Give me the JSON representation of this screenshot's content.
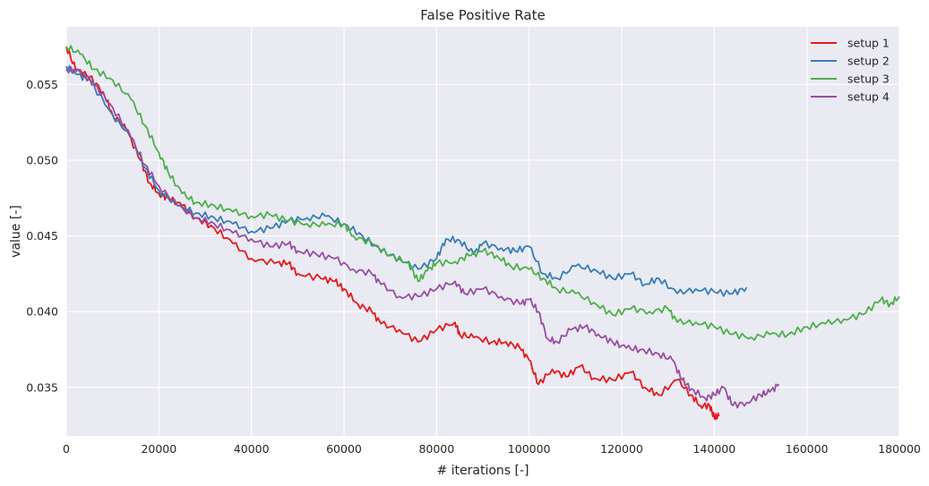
{
  "chart_data": {
    "type": "line",
    "title": "False Positive Rate",
    "xlabel": "# iterations [-]",
    "ylabel": "value [-]",
    "xlim": [
      0,
      180000
    ],
    "ylim": [
      0.0318,
      0.0588
    ],
    "x_ticks": [
      0,
      20000,
      40000,
      60000,
      80000,
      100000,
      120000,
      140000,
      160000,
      180000
    ],
    "y_ticks": [
      0.035,
      0.04,
      0.045,
      0.05,
      0.055
    ],
    "y_tick_labels": [
      "0.035",
      "0.040",
      "0.045",
      "0.050",
      "0.055"
    ],
    "grid": true,
    "legend_position": "top-right",
    "series": [
      {
        "name": "setup 1",
        "color": "#e41a1c",
        "points": [
          [
            0,
            0.0575
          ],
          [
            2000,
            0.056
          ],
          [
            5000,
            0.0555
          ],
          [
            8000,
            0.0545
          ],
          [
            10000,
            0.053
          ],
          [
            13000,
            0.052
          ],
          [
            16000,
            0.05
          ],
          [
            18000,
            0.0485
          ],
          [
            20000,
            0.0478
          ],
          [
            22000,
            0.0475
          ],
          [
            25000,
            0.047
          ],
          [
            28000,
            0.0462
          ],
          [
            32000,
            0.0455
          ],
          [
            36000,
            0.0445
          ],
          [
            40000,
            0.0435
          ],
          [
            45000,
            0.0432
          ],
          [
            48000,
            0.0432
          ],
          [
            50000,
            0.0425
          ],
          [
            55000,
            0.0422
          ],
          [
            58000,
            0.042
          ],
          [
            60000,
            0.0415
          ],
          [
            63000,
            0.0405
          ],
          [
            66000,
            0.04
          ],
          [
            68000,
            0.0392
          ],
          [
            72000,
            0.0388
          ],
          [
            76000,
            0.038
          ],
          [
            80000,
            0.0388
          ],
          [
            84000,
            0.0393
          ],
          [
            85000,
            0.0385
          ],
          [
            88000,
            0.0383
          ],
          [
            92000,
            0.038
          ],
          [
            95000,
            0.038
          ],
          [
            98000,
            0.0376
          ],
          [
            100000,
            0.0368
          ],
          [
            102000,
            0.0352
          ],
          [
            105000,
            0.0362
          ],
          [
            108000,
            0.0357
          ],
          [
            111000,
            0.0364
          ],
          [
            114000,
            0.0356
          ],
          [
            118000,
            0.0355
          ],
          [
            122000,
            0.036
          ],
          [
            125000,
            0.035
          ],
          [
            128000,
            0.0345
          ],
          [
            132000,
            0.0355
          ],
          [
            135000,
            0.0345
          ],
          [
            137000,
            0.0338
          ],
          [
            139000,
            0.0338
          ],
          [
            140000,
            0.033
          ],
          [
            141000,
            0.0331
          ]
        ]
      },
      {
        "name": "setup 2",
        "color": "#377eb8",
        "points": [
          [
            0,
            0.0562
          ],
          [
            2000,
            0.0557
          ],
          [
            5000,
            0.0553
          ],
          [
            10000,
            0.053
          ],
          [
            14000,
            0.0515
          ],
          [
            17000,
            0.0495
          ],
          [
            20000,
            0.048
          ],
          [
            24000,
            0.047
          ],
          [
            28000,
            0.0465
          ],
          [
            32000,
            0.0462
          ],
          [
            36000,
            0.0458
          ],
          [
            40000,
            0.0453
          ],
          [
            44000,
            0.0455
          ],
          [
            48000,
            0.046
          ],
          [
            52000,
            0.0462
          ],
          [
            56000,
            0.0463
          ],
          [
            60000,
            0.0458
          ],
          [
            64000,
            0.045
          ],
          [
            68000,
            0.044
          ],
          [
            72000,
            0.0435
          ],
          [
            76000,
            0.0428
          ],
          [
            80000,
            0.0435
          ],
          [
            82000,
            0.0448
          ],
          [
            85000,
            0.0447
          ],
          [
            88000,
            0.0438
          ],
          [
            90000,
            0.0445
          ],
          [
            94000,
            0.0442
          ],
          [
            97000,
            0.044
          ],
          [
            100000,
            0.0443
          ],
          [
            103000,
            0.0425
          ],
          [
            106000,
            0.0422
          ],
          [
            110000,
            0.043
          ],
          [
            114000,
            0.0428
          ],
          [
            118000,
            0.0422
          ],
          [
            122000,
            0.0425
          ],
          [
            125000,
            0.0418
          ],
          [
            128000,
            0.0422
          ],
          [
            132000,
            0.0412
          ],
          [
            136000,
            0.0415
          ],
          [
            140000,
            0.0413
          ],
          [
            144000,
            0.0412
          ],
          [
            147000,
            0.0416
          ]
        ]
      },
      {
        "name": "setup 3",
        "color": "#4daf4a",
        "points": [
          [
            0,
            0.0575
          ],
          [
            3000,
            0.057
          ],
          [
            6000,
            0.056
          ],
          [
            10000,
            0.0553
          ],
          [
            14000,
            0.054
          ],
          [
            17000,
            0.0523
          ],
          [
            20000,
            0.0505
          ],
          [
            22000,
            0.0492
          ],
          [
            25000,
            0.0478
          ],
          [
            28000,
            0.0472
          ],
          [
            32000,
            0.047
          ],
          [
            36000,
            0.0466
          ],
          [
            40000,
            0.0463
          ],
          [
            44000,
            0.0464
          ],
          [
            48000,
            0.046
          ],
          [
            52000,
            0.0458
          ],
          [
            56000,
            0.0457
          ],
          [
            60000,
            0.0458
          ],
          [
            62000,
            0.045
          ],
          [
            66000,
            0.0445
          ],
          [
            70000,
            0.0437
          ],
          [
            74000,
            0.0432
          ],
          [
            76000,
            0.042
          ],
          [
            78000,
            0.0427
          ],
          [
            80000,
            0.0432
          ],
          [
            84000,
            0.0433
          ],
          [
            87000,
            0.0437
          ],
          [
            90000,
            0.044
          ],
          [
            93000,
            0.0437
          ],
          [
            96000,
            0.043
          ],
          [
            100000,
            0.0428
          ],
          [
            103000,
            0.0422
          ],
          [
            106000,
            0.0415
          ],
          [
            110000,
            0.0412
          ],
          [
            114000,
            0.0406
          ],
          [
            118000,
            0.0398
          ],
          [
            122000,
            0.0402
          ],
          [
            126000,
            0.04
          ],
          [
            130000,
            0.0402
          ],
          [
            132000,
            0.0393
          ],
          [
            136000,
            0.0393
          ],
          [
            140000,
            0.039
          ],
          [
            144000,
            0.0385
          ],
          [
            148000,
            0.0383
          ],
          [
            152000,
            0.0385
          ],
          [
            156000,
            0.0385
          ],
          [
            160000,
            0.039
          ],
          [
            164000,
            0.0392
          ],
          [
            168000,
            0.0395
          ],
          [
            172000,
            0.0398
          ],
          [
            176000,
            0.0408
          ],
          [
            178000,
            0.0405
          ],
          [
            180000,
            0.041
          ]
        ]
      },
      {
        "name": "setup 4",
        "color": "#984ea3",
        "points": [
          [
            0,
            0.056
          ],
          [
            3000,
            0.0558
          ],
          [
            6000,
            0.055
          ],
          [
            10000,
            0.0535
          ],
          [
            14000,
            0.0515
          ],
          [
            17000,
            0.0497
          ],
          [
            20000,
            0.0483
          ],
          [
            24000,
            0.047
          ],
          [
            28000,
            0.0462
          ],
          [
            32000,
            0.0458
          ],
          [
            36000,
            0.0452
          ],
          [
            40000,
            0.0448
          ],
          [
            44000,
            0.0443
          ],
          [
            48000,
            0.0445
          ],
          [
            50000,
            0.044
          ],
          [
            54000,
            0.0438
          ],
          [
            58000,
            0.0435
          ],
          [
            62000,
            0.0428
          ],
          [
            66000,
            0.0425
          ],
          [
            68000,
            0.0418
          ],
          [
            72000,
            0.041
          ],
          [
            76000,
            0.041
          ],
          [
            80000,
            0.0415
          ],
          [
            84000,
            0.042
          ],
          [
            86000,
            0.0412
          ],
          [
            90000,
            0.0415
          ],
          [
            94000,
            0.041
          ],
          [
            98000,
            0.0405
          ],
          [
            100000,
            0.0408
          ],
          [
            102000,
            0.04
          ],
          [
            104000,
            0.0382
          ],
          [
            106000,
            0.038
          ],
          [
            109000,
            0.0388
          ],
          [
            112000,
            0.039
          ],
          [
            115000,
            0.0385
          ],
          [
            118000,
            0.038
          ],
          [
            121000,
            0.0376
          ],
          [
            124000,
            0.0375
          ],
          [
            128000,
            0.0372
          ],
          [
            131000,
            0.0368
          ],
          [
            133000,
            0.0355
          ],
          [
            135000,
            0.0349
          ],
          [
            138000,
            0.0343
          ],
          [
            140000,
            0.0345
          ],
          [
            142000,
            0.035
          ],
          [
            144000,
            0.0338
          ],
          [
            147000,
            0.034
          ],
          [
            150000,
            0.0345
          ],
          [
            152000,
            0.0347
          ],
          [
            154000,
            0.0352
          ]
        ]
      }
    ]
  }
}
